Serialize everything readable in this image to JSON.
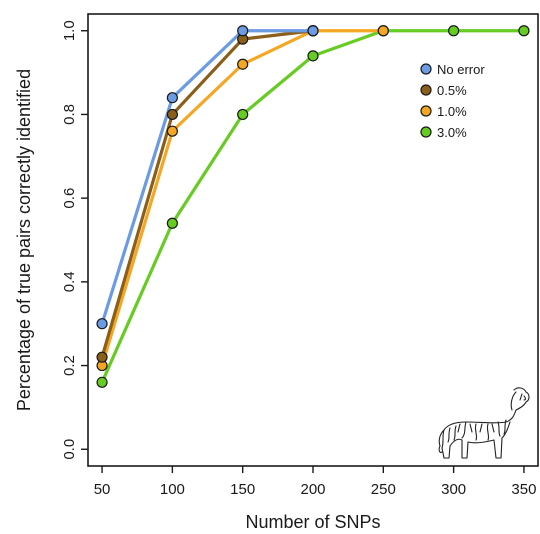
{
  "chart_data": {
    "type": "line",
    "title": "",
    "xlabel": "Number of SNPs",
    "ylabel": "Percentage of true pairs correctly identified",
    "x": [
      50,
      100,
      150,
      200,
      250,
      300,
      350
    ],
    "x_ticks": [
      "50",
      "100",
      "150",
      "200",
      "250",
      "300",
      "350"
    ],
    "y_ticks": [
      "0.0",
      "0.2",
      "0.4",
      "0.6",
      "0.8",
      "1.0"
    ],
    "xlim": [
      40,
      360
    ],
    "ylim": [
      -0.04,
      1.04
    ],
    "grid": false,
    "legend_position": "top-right",
    "series": [
      {
        "name": "No error",
        "color": "#6a9be3",
        "points": [
          [
            50,
            0.3
          ],
          [
            100,
            0.84
          ],
          [
            150,
            1.0
          ],
          [
            200,
            1.0
          ]
        ]
      },
      {
        "name": "0.5%",
        "color": "#8b5e1a",
        "points": [
          [
            50,
            0.22
          ],
          [
            100,
            0.8
          ],
          [
            150,
            0.98
          ],
          [
            200,
            1.0
          ]
        ]
      },
      {
        "name": "1.0%",
        "color": "#f5a623",
        "points": [
          [
            50,
            0.2
          ],
          [
            100,
            0.76
          ],
          [
            150,
            0.92
          ],
          [
            200,
            1.0
          ],
          [
            250,
            1.0
          ]
        ]
      },
      {
        "name": "3.0%",
        "color": "#66cc22",
        "points": [
          [
            50,
            0.16
          ],
          [
            100,
            0.54
          ],
          [
            150,
            0.8
          ],
          [
            200,
            0.94
          ],
          [
            250,
            1.0
          ],
          [
            300,
            1.0
          ],
          [
            350,
            1.0
          ]
        ]
      }
    ],
    "decoration_icon": "dog-sketch-icon"
  }
}
